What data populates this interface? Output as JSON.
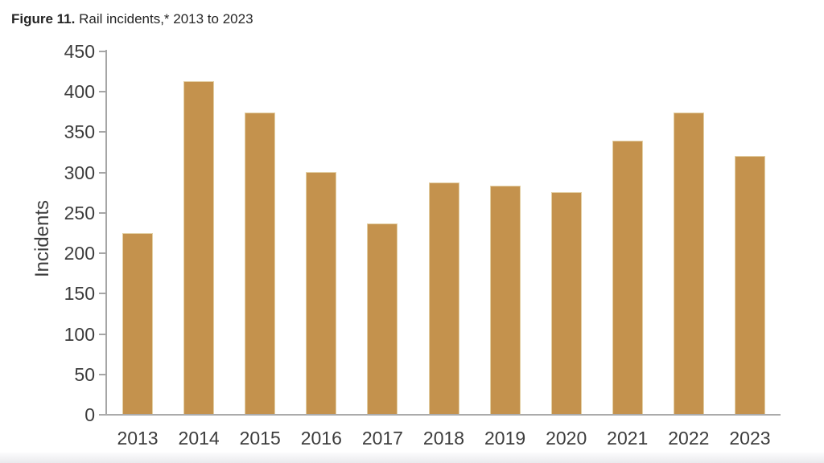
{
  "title": {
    "prefix": "Figure 11.",
    "text": " Rail incidents,* 2013 to 2023"
  },
  "chart_data": {
    "type": "bar",
    "title": "Figure 11. Rail incidents,* 2013 to 2023",
    "categories": [
      "2013",
      "2014",
      "2015",
      "2016",
      "2017",
      "2018",
      "2019",
      "2020",
      "2021",
      "2022",
      "2023"
    ],
    "values": [
      225,
      413,
      374,
      301,
      237,
      288,
      284,
      276,
      339,
      374,
      321
    ],
    "xlabel": "",
    "ylabel": "Incidents",
    "ylim": [
      0,
      450
    ],
    "ytick_step": 50,
    "yticks": [
      0,
      50,
      100,
      150,
      200,
      250,
      300,
      350,
      400,
      450
    ],
    "grid": false,
    "legend_position": "none",
    "colors": {
      "bar_fill": "#c4924d",
      "bar_border": "#e3cfa4",
      "axis": "#a6a6a6",
      "tick_text": "#3d3d3d",
      "title_text": "#252525"
    }
  }
}
